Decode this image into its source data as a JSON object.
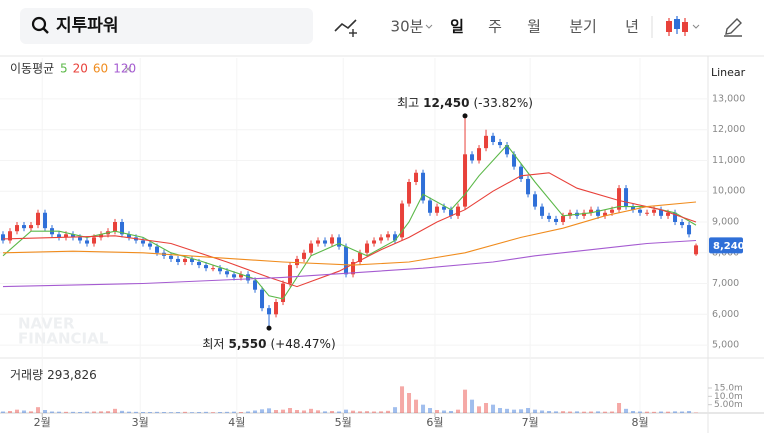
{
  "toolbar": {
    "search": "지투파워",
    "periods": [
      "30분",
      "일",
      "주",
      "월",
      "분기",
      "년"
    ],
    "selected_period_index": 1
  },
  "chart_data": {
    "type": "candlestick",
    "ma_legend_title": "이동평균",
    "scale_label": "Linear",
    "up_color": "#e8413a",
    "down_color": "#2f6fd8",
    "open": [
      8600,
      8400,
      8700,
      8900,
      8800,
      8900,
      9300,
      8800,
      8600,
      8500,
      8600,
      8500,
      8400,
      8300,
      8500,
      8600,
      8700,
      9000,
      8600,
      8500,
      8400,
      8300,
      8200,
      8000,
      7900,
      7800,
      7700,
      7800,
      7700,
      7600,
      7500,
      7500,
      7400,
      7300,
      7200,
      7300,
      7100,
      6800,
      6200,
      6000,
      6400,
      7000,
      7600,
      7800,
      8000,
      8300,
      8400,
      8300,
      8500,
      8200,
      7300,
      7700,
      8000,
      8300,
      8400,
      8500,
      8600,
      8500,
      9600,
      10300,
      10600,
      9700,
      9300,
      9500,
      9400,
      9200,
      9500,
      11200,
      11000,
      11400,
      11800,
      11600,
      11500,
      11200,
      10800,
      10400,
      9900,
      9500,
      9200,
      9100,
      9000,
      9200,
      9300,
      9200,
      9300,
      9400,
      9200,
      9300,
      9400,
      10100,
      9500,
      9400,
      9300,
      9300,
      9400,
      9200,
      9300,
      9000,
      8900,
      7950
    ],
    "high": [
      8700,
      8800,
      9000,
      9000,
      9000,
      9400,
      9400,
      8900,
      8700,
      8700,
      8700,
      8600,
      8500,
      8600,
      8700,
      8800,
      9100,
      9100,
      8700,
      8600,
      8500,
      8400,
      8300,
      8100,
      8000,
      7900,
      7900,
      7900,
      7800,
      7700,
      7600,
      7600,
      7500,
      7400,
      7400,
      7400,
      7200,
      6900,
      6300,
      6500,
      7100,
      7700,
      7900,
      8100,
      8400,
      8500,
      8500,
      8600,
      8600,
      8300,
      7800,
      8100,
      8400,
      8500,
      8600,
      8700,
      8700,
      9700,
      10400,
      10700,
      10700,
      9800,
      9600,
      9600,
      9500,
      9600,
      12450,
      11300,
      11500,
      12000,
      11900,
      11700,
      11600,
      11300,
      10900,
      10500,
      10000,
      9600,
      9300,
      9200,
      9300,
      9400,
      9400,
      9400,
      9500,
      9500,
      9400,
      9500,
      10200,
      10200,
      9600,
      9500,
      9400,
      9500,
      9500,
      9400,
      9400,
      9100,
      9000,
      8300
    ],
    "low": [
      8300,
      8300,
      8600,
      8700,
      8700,
      8800,
      8700,
      8500,
      8400,
      8400,
      8400,
      8300,
      8200,
      8200,
      8400,
      8500,
      8600,
      8500,
      8400,
      8300,
      8200,
      8100,
      7900,
      7800,
      7700,
      7600,
      7600,
      7600,
      7500,
      7400,
      7400,
      7300,
      7200,
      7100,
      7100,
      7000,
      6700,
      6100,
      5550,
      5900,
      6300,
      6900,
      7500,
      7700,
      7900,
      8200,
      8200,
      8200,
      8100,
      7200,
      7200,
      7600,
      7900,
      8200,
      8300,
      8400,
      8300,
      8400,
      9500,
      10200,
      9600,
      9200,
      9200,
      9300,
      9100,
      9100,
      9400,
      10900,
      10900,
      11300,
      11500,
      11400,
      11100,
      10700,
      10300,
      9800,
      9400,
      9100,
      9000,
      8900,
      8900,
      9100,
      9100,
      9100,
      9200,
      9100,
      9100,
      9200,
      9300,
      9400,
      9300,
      9200,
      9200,
      9200,
      9100,
      9100,
      8900,
      8800,
      8500,
      7900
    ],
    "close": [
      8400,
      8700,
      8900,
      8800,
      8900,
      9300,
      8800,
      8600,
      8500,
      8600,
      8500,
      8400,
      8300,
      8500,
      8600,
      8700,
      9000,
      8600,
      8500,
      8400,
      8300,
      8200,
      8000,
      7900,
      7800,
      7700,
      7800,
      7700,
      7600,
      7500,
      7500,
      7400,
      7300,
      7200,
      7300,
      7100,
      6800,
      6200,
      6000,
      6400,
      7000,
      7600,
      7800,
      8000,
      8300,
      8400,
      8300,
      8500,
      8200,
      7300,
      7700,
      8000,
      8300,
      8400,
      8500,
      8600,
      8400,
      9600,
      10300,
      10600,
      9700,
      9300,
      9500,
      9400,
      9200,
      9500,
      11200,
      11000,
      11400,
      11800,
      11600,
      11500,
      11200,
      10800,
      10400,
      9900,
      9500,
      9200,
      9100,
      9000,
      9200,
      9300,
      9200,
      9300,
      9400,
      9200,
      9300,
      9400,
      10100,
      9500,
      9400,
      9300,
      9300,
      9400,
      9200,
      9300,
      9000,
      8900,
      8600,
      8240
    ],
    "ylim": [
      4580,
      14200
    ],
    "yticks": [
      {
        "value": 5000,
        "label": "5,000"
      },
      {
        "value": 6000,
        "label": "6,000"
      },
      {
        "value": 7000,
        "label": "7,000"
      },
      {
        "value": 8000,
        "label": "8,000"
      },
      {
        "value": 9000,
        "label": "9,000"
      },
      {
        "value": 10000,
        "label": "10,000"
      },
      {
        "value": 11000,
        "label": "11,000"
      },
      {
        "value": 12000,
        "label": "12,000"
      },
      {
        "value": 13000,
        "label": "13,000"
      }
    ],
    "xlim": [
      -0.43,
      100.71
    ],
    "xticks": [
      {
        "value": 5.6,
        "label": "2월"
      },
      {
        "value": 19.6,
        "label": "3월"
      },
      {
        "value": 33.4,
        "label": "4월"
      },
      {
        "value": 48.6,
        "label": "5월"
      },
      {
        "value": 61.7,
        "label": "6월"
      },
      {
        "value": 75.3,
        "label": "7월"
      },
      {
        "value": 91,
        "label": "8월"
      }
    ],
    "series": [
      {
        "name": "5",
        "color": "#5bb848",
        "x": [
          0,
          4,
          8,
          12,
          16,
          20,
          24,
          28,
          32,
          36,
          38,
          40,
          44,
          48,
          52,
          56,
          58,
          60,
          64,
          66,
          68,
          72,
          76,
          80,
          84,
          88,
          92,
          96,
          99
        ],
        "values": [
          7900,
          8700,
          8700,
          8500,
          8700,
          8500,
          8000,
          7750,
          7450,
          7150,
          6600,
          6500,
          7900,
          8300,
          7900,
          8400,
          9000,
          9900,
          9400,
          9900,
          10500,
          11500,
          10300,
          9200,
          9300,
          9500,
          9500,
          9300,
          8900
        ]
      },
      {
        "name": "20",
        "color": "#e8413a",
        "x": [
          0,
          8,
          16,
          24,
          32,
          38,
          42,
          48,
          54,
          58,
          62,
          66,
          70,
          74,
          78,
          82,
          88,
          94,
          99
        ],
        "values": [
          8450,
          8500,
          8550,
          8300,
          7700,
          7200,
          6900,
          7400,
          8100,
          8500,
          9000,
          9400,
          10000,
          10500,
          10600,
          10100,
          9700,
          9400,
          9000
        ]
      },
      {
        "name": "60",
        "color": "#f08c1e",
        "x": [
          0,
          10,
          20,
          30,
          40,
          50,
          58,
          66,
          74,
          80,
          86,
          92,
          99
        ],
        "values": [
          8000,
          8050,
          8000,
          7850,
          7700,
          7600,
          7700,
          8000,
          8500,
          8800,
          9200,
          9500,
          9650
        ]
      },
      {
        "name": "120",
        "color": "#a55bd1",
        "x": [
          0,
          20,
          40,
          60,
          70,
          76,
          84,
          92,
          99
        ],
        "values": [
          6900,
          7000,
          7200,
          7500,
          7700,
          7900,
          8100,
          8300,
          8400
        ]
      }
    ],
    "current_price": {
      "value": 8240,
      "label": "8,240"
    },
    "annotations": [
      {
        "title": "최고",
        "index": 66,
        "value": 12450,
        "value_label": "12,450",
        "change": "(-33.82%)"
      },
      {
        "title": "최저",
        "index": 38,
        "value": 5550,
        "value_label": "5,550",
        "change": "(+48.47%)"
      }
    ],
    "watermark": [
      "NAVER",
      "FINANCIAL"
    ],
    "volume": {
      "title": "거래량",
      "current": {
        "value": 293826,
        "label": "293,826"
      },
      "values": [
        900000,
        1200000,
        2000000,
        1500000,
        1000000,
        3500000,
        1800000,
        900000,
        800000,
        700000,
        700000,
        600000,
        800000,
        900000,
        1000000,
        1100000,
        2500000,
        1300000,
        800000,
        700000,
        600000,
        600000,
        700000,
        600000,
        500000,
        600000,
        700000,
        500000,
        600000,
        700000,
        500000,
        600000,
        700000,
        800000,
        600000,
        900000,
        1500000,
        2200000,
        2800000,
        1800000,
        2000000,
        3000000,
        1800000,
        1500000,
        2500000,
        1600000,
        1000000,
        1200000,
        900000,
        2000000,
        1400000,
        1000000,
        1100000,
        900000,
        1000000,
        1300000,
        3500000,
        16000000,
        12000000,
        8000000,
        5000000,
        3000000,
        1800000,
        1500000,
        1200000,
        2000000,
        14000000,
        8000000,
        4000000,
        6000000,
        5000000,
        3000000,
        2500000,
        2000000,
        2200000,
        3000000,
        2000000,
        1500000,
        1200000,
        1000000,
        1100000,
        900000,
        1000000,
        800000,
        900000,
        1000000,
        800000,
        900000,
        6000000,
        2500000,
        1200000,
        900000,
        800000,
        700000,
        900000,
        800000,
        1000000,
        900000,
        1200000,
        293826
      ],
      "ylim": [
        0,
        31800000
      ],
      "yticks": [
        {
          "value": 5000000,
          "label": "5.00m"
        },
        {
          "value": 10000000,
          "label": "10.0m"
        },
        {
          "value": 15000000,
          "label": "15.0m"
        }
      ]
    }
  }
}
